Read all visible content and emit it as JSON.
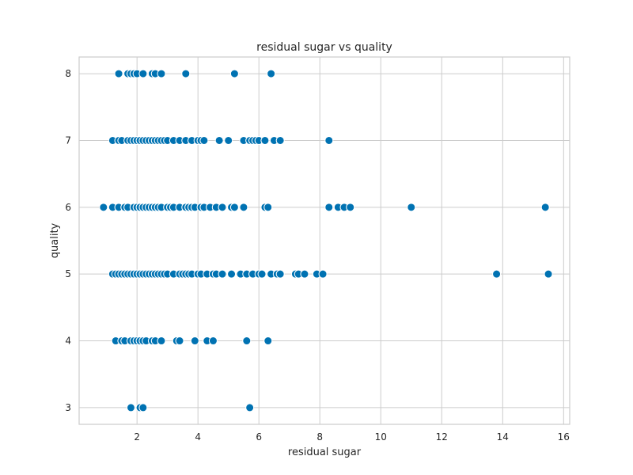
{
  "chart_data": {
    "type": "scatter",
    "title": "residual sugar vs quality",
    "xlabel": "residual sugar",
    "ylabel": "quality",
    "xlim": [
      0.1,
      16.2
    ],
    "ylim": [
      2.75,
      8.25
    ],
    "xticks": [
      2,
      4,
      6,
      8,
      10,
      12,
      14,
      16
    ],
    "yticks": [
      3,
      4,
      5,
      6,
      7,
      8
    ],
    "grid": true,
    "marker_color": "#0072b2",
    "points": [
      [
        1.8,
        3
      ],
      [
        2.1,
        3
      ],
      [
        2.2,
        3
      ],
      [
        5.7,
        3
      ],
      [
        1.3,
        4
      ],
      [
        1.5,
        4
      ],
      [
        1.6,
        4
      ],
      [
        1.8,
        4
      ],
      [
        1.9,
        4
      ],
      [
        2.0,
        4
      ],
      [
        2.1,
        4
      ],
      [
        2.2,
        4
      ],
      [
        2.3,
        4
      ],
      [
        2.5,
        4
      ],
      [
        2.6,
        4
      ],
      [
        2.8,
        4
      ],
      [
        3.3,
        4
      ],
      [
        3.4,
        4
      ],
      [
        3.9,
        4
      ],
      [
        4.3,
        4
      ],
      [
        4.5,
        4
      ],
      [
        5.6,
        4
      ],
      [
        6.3,
        4
      ],
      [
        1.2,
        5
      ],
      [
        1.3,
        5
      ],
      [
        1.4,
        5
      ],
      [
        1.5,
        5
      ],
      [
        1.6,
        5
      ],
      [
        1.7,
        5
      ],
      [
        1.8,
        5
      ],
      [
        1.9,
        5
      ],
      [
        2.0,
        5
      ],
      [
        2.1,
        5
      ],
      [
        2.2,
        5
      ],
      [
        2.3,
        5
      ],
      [
        2.4,
        5
      ],
      [
        2.5,
        5
      ],
      [
        2.6,
        5
      ],
      [
        2.7,
        5
      ],
      [
        2.8,
        5
      ],
      [
        2.9,
        5
      ],
      [
        3.0,
        5
      ],
      [
        3.2,
        5
      ],
      [
        3.4,
        5
      ],
      [
        3.5,
        5
      ],
      [
        3.6,
        5
      ],
      [
        3.7,
        5
      ],
      [
        3.8,
        5
      ],
      [
        4.0,
        5
      ],
      [
        4.1,
        5
      ],
      [
        4.3,
        5
      ],
      [
        4.5,
        5
      ],
      [
        4.6,
        5
      ],
      [
        4.8,
        5
      ],
      [
        5.1,
        5
      ],
      [
        5.4,
        5
      ],
      [
        5.6,
        5
      ],
      [
        5.8,
        5
      ],
      [
        6.0,
        5
      ],
      [
        6.1,
        5
      ],
      [
        6.4,
        5
      ],
      [
        6.6,
        5
      ],
      [
        6.7,
        5
      ],
      [
        7.2,
        5
      ],
      [
        7.3,
        5
      ],
      [
        7.5,
        5
      ],
      [
        7.9,
        5
      ],
      [
        8.1,
        5
      ],
      [
        13.8,
        5
      ],
      [
        15.5,
        5
      ],
      [
        0.9,
        6
      ],
      [
        1.2,
        6
      ],
      [
        1.4,
        6
      ],
      [
        1.6,
        6
      ],
      [
        1.7,
        6
      ],
      [
        1.9,
        6
      ],
      [
        2.0,
        6
      ],
      [
        2.1,
        6
      ],
      [
        2.2,
        6
      ],
      [
        2.3,
        6
      ],
      [
        2.4,
        6
      ],
      [
        2.5,
        6
      ],
      [
        2.6,
        6
      ],
      [
        2.7,
        6
      ],
      [
        2.8,
        6
      ],
      [
        3.0,
        6
      ],
      [
        3.1,
        6
      ],
      [
        3.2,
        6
      ],
      [
        3.4,
        6
      ],
      [
        3.6,
        6
      ],
      [
        3.7,
        6
      ],
      [
        3.8,
        6
      ],
      [
        3.9,
        6
      ],
      [
        4.1,
        6
      ],
      [
        4.2,
        6
      ],
      [
        4.4,
        6
      ],
      [
        4.6,
        6
      ],
      [
        4.8,
        6
      ],
      [
        5.1,
        6
      ],
      [
        5.2,
        6
      ],
      [
        5.5,
        6
      ],
      [
        6.2,
        6
      ],
      [
        6.3,
        6
      ],
      [
        8.3,
        6
      ],
      [
        8.6,
        6
      ],
      [
        8.8,
        6
      ],
      [
        9.0,
        6
      ],
      [
        11.0,
        6
      ],
      [
        15.4,
        6
      ],
      [
        1.2,
        7
      ],
      [
        1.4,
        7
      ],
      [
        1.5,
        7
      ],
      [
        1.7,
        7
      ],
      [
        1.8,
        7
      ],
      [
        1.9,
        7
      ],
      [
        2.0,
        7
      ],
      [
        2.1,
        7
      ],
      [
        2.2,
        7
      ],
      [
        2.3,
        7
      ],
      [
        2.4,
        7
      ],
      [
        2.5,
        7
      ],
      [
        2.6,
        7
      ],
      [
        2.7,
        7
      ],
      [
        2.8,
        7
      ],
      [
        2.9,
        7
      ],
      [
        3.0,
        7
      ],
      [
        3.2,
        7
      ],
      [
        3.4,
        7
      ],
      [
        3.6,
        7
      ],
      [
        3.8,
        7
      ],
      [
        4.0,
        7
      ],
      [
        4.1,
        7
      ],
      [
        4.2,
        7
      ],
      [
        4.7,
        7
      ],
      [
        5.0,
        7
      ],
      [
        5.5,
        7
      ],
      [
        5.7,
        7
      ],
      [
        5.8,
        7
      ],
      [
        5.9,
        7
      ],
      [
        6.0,
        7
      ],
      [
        6.2,
        7
      ],
      [
        6.5,
        7
      ],
      [
        6.7,
        7
      ],
      [
        8.3,
        7
      ],
      [
        1.4,
        8
      ],
      [
        1.7,
        8
      ],
      [
        1.8,
        8
      ],
      [
        1.9,
        8
      ],
      [
        2.0,
        8
      ],
      [
        2.2,
        8
      ],
      [
        2.5,
        8
      ],
      [
        2.6,
        8
      ],
      [
        2.8,
        8
      ],
      [
        3.6,
        8
      ],
      [
        5.2,
        8
      ],
      [
        6.4,
        8
      ]
    ]
  }
}
